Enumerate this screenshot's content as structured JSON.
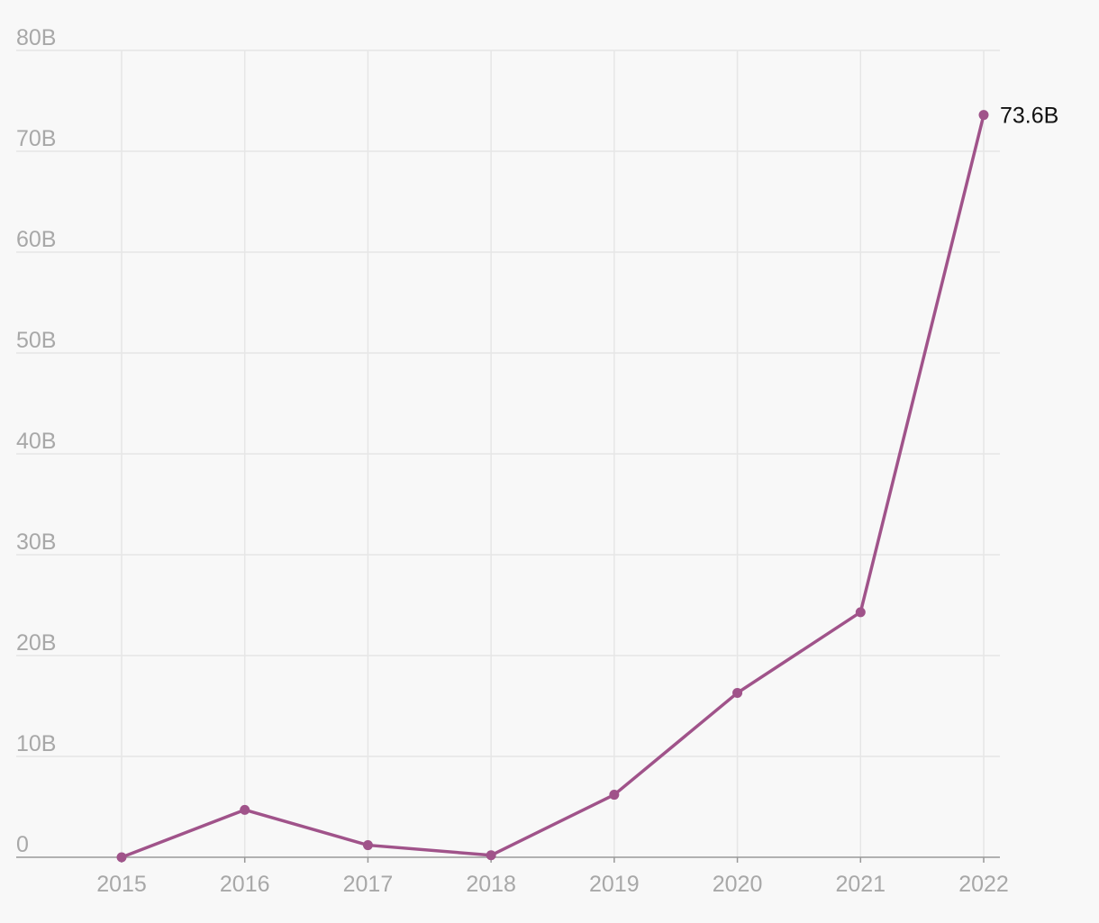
{
  "colors": {
    "background": "#f8f8f8",
    "line": "#a0538a",
    "grid": "#e6e6e6",
    "axis": "#999999",
    "tick_text": "#a8a8a8",
    "label_text": "#111111"
  },
  "chart_data": {
    "type": "line",
    "title": "",
    "xlabel": "",
    "ylabel": "",
    "x": [
      "2015",
      "2016",
      "2017",
      "2018",
      "2019",
      "2020",
      "2021",
      "2022"
    ],
    "series": [
      {
        "values": [
          0,
          4.7,
          1.2,
          0.2,
          6.2,
          16.3,
          24.3,
          73.6
        ]
      }
    ],
    "ylim": [
      0,
      80
    ],
    "y_ticks": [
      0,
      10,
      20,
      30,
      40,
      50,
      60,
      70,
      80
    ],
    "y_tick_labels": [
      "0",
      "10B",
      "20B",
      "30B",
      "40B",
      "50B",
      "60B",
      "70B",
      "80B"
    ],
    "grid": true,
    "legend": "none",
    "annotations": [
      {
        "x": "2022",
        "y": 73.6,
        "text": "73.6B"
      }
    ]
  }
}
